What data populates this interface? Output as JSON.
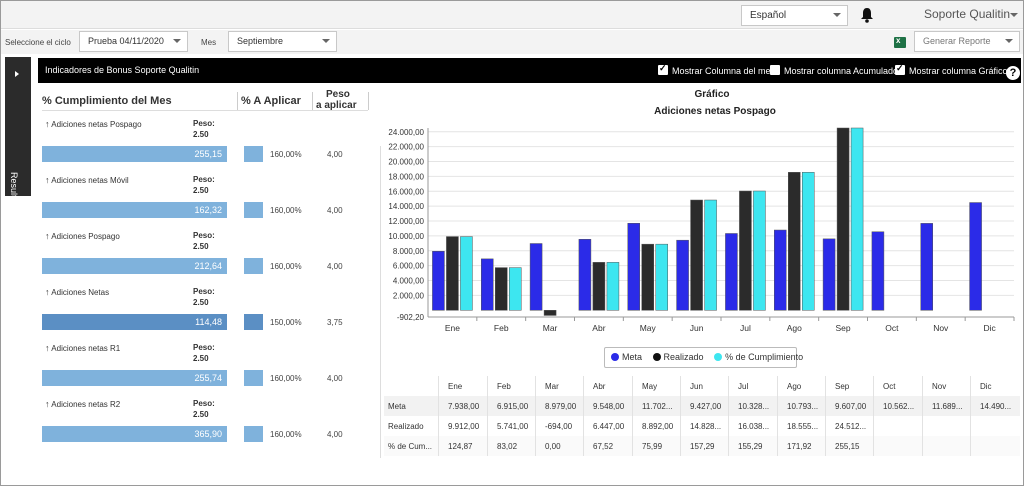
{
  "top": {
    "language": "Español",
    "user": "Soporte Qualitin"
  },
  "filters": {
    "cycle_label": "Seleccione el ciclo",
    "cycle_value": "Prueba 04/11/2020",
    "month_label": "Mes",
    "month_value": "Septiembre",
    "report_value": "Generar Reporte"
  },
  "sidetab": {
    "label": "Resultado"
  },
  "header": {
    "title": "Indicadores de Bonus  Soporte Qualitin",
    "chk_month": "Mostrar Columna del mes",
    "chk_acc": "Mostrar columna Acumulado",
    "chk_chart": "Mostrar columna Gráfico",
    "help": "?"
  },
  "columns": {
    "cumplimiento": "% Cumplimiento del Mes",
    "aplicar": "% A Aplicar",
    "peso1": "Peso",
    "peso2": "a aplicar"
  },
  "rows": [
    {
      "label": "Adiciones netas Pospago",
      "peso_label": "Peso:",
      "peso": "2.50",
      "value": "255,15",
      "fill": 1.0,
      "pct": "160,00%",
      "weight": "4,00",
      "color": "#7fb2dc"
    },
    {
      "label": "Adiciones netas  Móvil",
      "peso_label": "Peso:",
      "peso": "2.50",
      "value": "162,32",
      "fill": 1.0,
      "pct": "160,00%",
      "weight": "4,00",
      "color": "#7fb2dc"
    },
    {
      "label": "Adiciones  Pospago",
      "peso_label": "Peso:",
      "peso": "2.50",
      "value": "212,64",
      "fill": 1.0,
      "pct": "160,00%",
      "weight": "4,00",
      "color": "#7fb2dc"
    },
    {
      "label": "Adiciones Netas",
      "peso_label": "Peso:",
      "peso": "2.50",
      "value": "114,48",
      "fill": 1.0,
      "pct": "150,00%",
      "weight": "3,75",
      "color": "#5b8fc4"
    },
    {
      "label": "Adiciones netas R1",
      "peso_label": "Peso:",
      "peso": "2.50",
      "value": "255,74",
      "fill": 1.0,
      "pct": "160,00%",
      "weight": "4,00",
      "color": "#7fb2dc"
    },
    {
      "label": "Adiciones netas  R2",
      "peso_label": "Peso:",
      "peso": "2.50",
      "value": "365,90",
      "fill": 1.0,
      "pct": "160,00%",
      "weight": "4,00",
      "color": "#7fb2dc"
    }
  ],
  "chart_header": "Gráfico",
  "chart_data": {
    "type": "bar",
    "title": "Adiciones netas Pospago",
    "categories": [
      "Ene",
      "Feb",
      "Mar",
      "Abr",
      "May",
      "Jun",
      "Jul",
      "Ago",
      "Sep",
      "Oct",
      "Nov",
      "Dic"
    ],
    "series": [
      {
        "name": "Meta",
        "color": "#2b2be8",
        "values": [
          7938,
          6915,
          8979,
          9548,
          11702,
          9427,
          10328,
          10793,
          9607,
          10562,
          11689,
          14490
        ]
      },
      {
        "name": "Realizado",
        "color": "#2b2b2b",
        "values": [
          9912,
          5741,
          -694,
          6447,
          8892,
          14828,
          16038,
          18555,
          24512,
          null,
          null,
          null
        ]
      },
      {
        "name": "% de Cumplimiento",
        "color": "#3de6f0",
        "values": [
          9912,
          5741,
          null,
          6447,
          8892,
          14828,
          16038,
          18555,
          24512,
          null,
          null,
          null
        ]
      }
    ],
    "yticks": [
      "24.000,00",
      "22.000,00",
      "20.000,00",
      "18.000,00",
      "16.000,00",
      "14.000,00",
      "12.000,00",
      "10.000,00",
      "8.000,00",
      "6.000,00",
      "4.000,00",
      "2.000,00",
      "-902,20"
    ],
    "ylim": [
      -902.2,
      24512
    ],
    "grid": true,
    "legend": "bottom"
  },
  "table": {
    "headers": [
      "Ene",
      "Feb",
      "Mar",
      "Abr",
      "May",
      "Jun",
      "Jul",
      "Ago",
      "Sep",
      "Oct",
      "Nov",
      "Dic"
    ],
    "rows": [
      {
        "label": "Meta",
        "cells": [
          "7.938,00",
          "6.915,00",
          "8.979,00",
          "9.548,00",
          "11.702...",
          "9.427,00",
          "10.328...",
          "10.793...",
          "9.607,00",
          "10.562...",
          "11.689...",
          "14.490..."
        ]
      },
      {
        "label": "Realizado",
        "cells": [
          "9.912,00",
          "5.741,00",
          "-694,00",
          "6.447,00",
          "8.892,00",
          "14.828...",
          "16.038...",
          "18.555...",
          "24.512...",
          "",
          "",
          ""
        ]
      },
      {
        "label": "% de Cum...",
        "cells": [
          "124,87",
          "83,02",
          "0,00",
          "67,52",
          "75,99",
          "157,29",
          "155,29",
          "171,92",
          "255,15",
          "",
          "",
          ""
        ]
      }
    ]
  }
}
